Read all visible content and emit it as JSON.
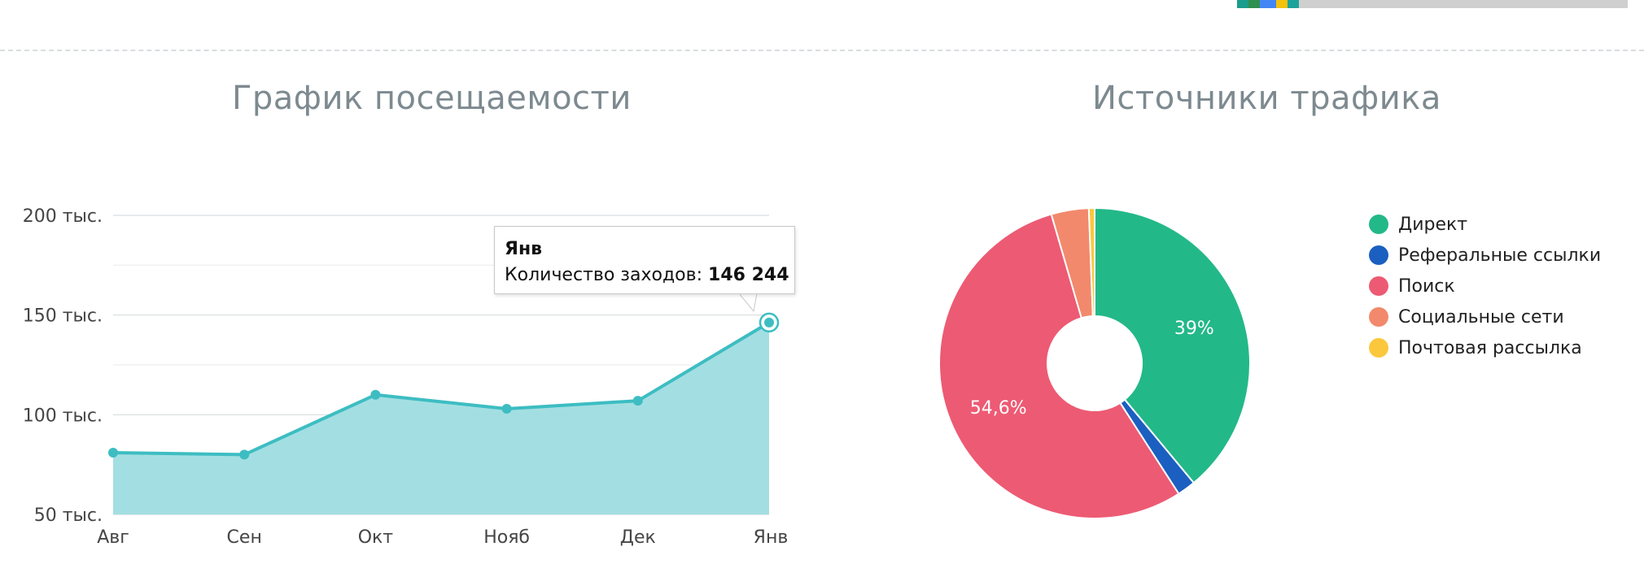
{
  "header": {
    "top_strip_colors": [
      "#1a9c8c",
      "#2f8f4f",
      "#4285f4",
      "#f4c20d",
      "#1aa39a",
      "#cfcfcf"
    ]
  },
  "panels": {
    "left_title": "График посещаемости",
    "right_title": "Источники трафика"
  },
  "tooltip": {
    "category": "Янв",
    "label": "Количество заходов: ",
    "value": "146 244"
  },
  "chart_data": [
    {
      "type": "area",
      "title": "График посещаемости",
      "categories": [
        "Авг",
        "Сен",
        "Окт",
        "Нояб",
        "Дек",
        "Янв"
      ],
      "series": [
        {
          "name": "Количество заходов",
          "values": [
            81000,
            80000,
            110000,
            103000,
            107000,
            146244
          ]
        }
      ],
      "ylim": [
        50000,
        200000
      ],
      "yticks": [
        {
          "value": 50000,
          "label": "50 тыс."
        },
        {
          "value": 100000,
          "label": "100 тыс."
        },
        {
          "value": 150000,
          "label": "150 тыс."
        },
        {
          "value": 200000,
          "label": "200 тыс."
        }
      ],
      "grid": true,
      "colors": {
        "line": "#3dbdc2",
        "fill": "#9edde0",
        "grid": "#e3e6e8"
      },
      "highlighted_category": "Янв"
    },
    {
      "type": "pie",
      "title": "Источники трафика",
      "donut": true,
      "slices": [
        {
          "label": "Директ",
          "value": 39.0,
          "color": "#23b888",
          "data_label": "39%"
        },
        {
          "label": "Реферальные ссылки",
          "value": 1.9,
          "color": "#1b5fc0",
          "data_label": ""
        },
        {
          "label": "Поиск",
          "value": 54.6,
          "color": "#ed5a73",
          "data_label": "54,6%"
        },
        {
          "label": "Социальные сети",
          "value": 3.9,
          "color": "#f2896c",
          "data_label": ""
        },
        {
          "label": "Почтовая рассылка",
          "value": 0.6,
          "color": "#fbc73c",
          "data_label": ""
        }
      ],
      "legend_position": "right"
    }
  ]
}
